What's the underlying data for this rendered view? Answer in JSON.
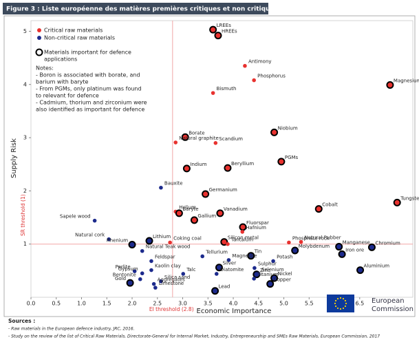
{
  "header": {
    "title": "Figure 3 : Liste européenne des matières premières critiques et non critiques"
  },
  "chart_data": {
    "type": "scatter",
    "xlabel": "Economic Importance",
    "ylabel": "Supply Risk",
    "xlim": [
      0,
      7.55
    ],
    "ylim": [
      0,
      5.2
    ],
    "xticks": [
      {
        "value": 0,
        "label": "0.0"
      },
      {
        "value": 0.5,
        "label": "0.5"
      },
      {
        "value": 1,
        "label": "1.0"
      },
      {
        "value": 1.5,
        "label": "1.5"
      },
      {
        "value": 2,
        "label": "2.0"
      },
      {
        "value": 2.5,
        "label": "2.5"
      },
      {
        "value": 3,
        "label": "3.0"
      },
      {
        "value": 3.5,
        "label": "3.5"
      },
      {
        "value": 4,
        "label": "4.0"
      },
      {
        "value": 4.5,
        "label": "4.5"
      },
      {
        "value": 5,
        "label": "5.0"
      },
      {
        "value": 5.5,
        "label": "5.5"
      },
      {
        "value": 6,
        "label": "6.0"
      },
      {
        "value": 6.5,
        "label": "6.5"
      }
    ],
    "yticks": [
      1,
      2,
      3,
      4,
      5
    ],
    "thresholds": {
      "x": 2.8,
      "x_label": "EI threshold (2.8)",
      "y": 1,
      "y_label": "SR threshold (1)",
      "color": "#f2a6a6"
    },
    "defence_legend": [
      "Materials important for defence",
      "applications"
    ],
    "notes": [
      "Notes:",
      "- Boron is associated with borate, and",
      "  barium with baryte",
      "- From PGMs, only platinum was found",
      "  to relevant for defence",
      "- Cadmium, thorium and zirconium were",
      "  also identified as important for defence"
    ],
    "series": [
      {
        "name": "Critical raw materials",
        "color": "#e8322f",
        "labels": [
          "LREEs",
          "HREEs",
          "Antimony",
          "Phosphorus",
          "Bismuth",
          "Magnesium",
          "Niobium",
          "Borate",
          "Natural graphite",
          "Scandium",
          "PGMs",
          "Indium",
          "Beryllium",
          "Germanium",
          "Cobalt",
          "Tungsten",
          "Helium",
          "Baryte",
          "Vanadium",
          "Gallium",
          "Fluorspar",
          "Hafnium",
          "Coking coal",
          "Silicon metal",
          "Tantalum",
          "Phosphate rock",
          "Natural Rubber"
        ],
        "x": [
          3.6,
          3.7,
          4.23,
          4.41,
          3.6,
          7.1,
          4.81,
          3.05,
          2.86,
          3.65,
          4.95,
          3.08,
          3.89,
          3.45,
          5.69,
          7.24,
          2.86,
          2.93,
          3.74,
          3.23,
          4.19,
          4.18,
          2.75,
          3.82,
          3.89,
          5.1,
          5.34
        ],
        "values": [
          5.03,
          4.92,
          4.35,
          4.08,
          3.84,
          3.99,
          3.1,
          3.01,
          2.91,
          2.9,
          2.55,
          2.42,
          2.43,
          1.94,
          1.66,
          1.78,
          1.61,
          1.58,
          1.58,
          1.45,
          1.32,
          1.23,
          1.03,
          1.04,
          1.0,
          1.03,
          1.04
        ],
        "defence": [
          true,
          true,
          false,
          false,
          false,
          true,
          true,
          true,
          false,
          false,
          true,
          true,
          true,
          true,
          true,
          true,
          false,
          true,
          true,
          true,
          true,
          false,
          false,
          true,
          false,
          false,
          false
        ]
      },
      {
        "name": "Non-critical raw materials",
        "color": "#1c2a8c",
        "labels": [
          "Bauxite",
          "Sapele wood",
          "Natural cork",
          "Rhenium",
          "Lithium",
          "Manganese",
          "Chromium",
          "Molybdenum",
          "Iron ore",
          "Natural Teak wood",
          "Tellurium",
          "Tin",
          "Magnesite",
          "Potash",
          "Feldspar",
          "Perlite",
          "Kaolin clay",
          "Gypsum",
          "Talc",
          "Silver",
          "Diatomite",
          "Zinc",
          "Sulphur",
          "Selenium",
          "Nickel",
          "Aluminium",
          "Bentonite",
          "Silica sand",
          "Aggregates",
          "Limestone",
          "Gold",
          "Titanium",
          "Copper",
          "Lead"
        ],
        "x": [
          2.57,
          1.26,
          1.54,
          2.0,
          2.34,
          6.09,
          6.74,
          5.22,
          6.15,
          2.2,
          3.39,
          4.35,
          3.91,
          4.79,
          2.38,
          2.05,
          2.38,
          2.2,
          3.01,
          3.72,
          3.67,
          4.46,
          4.42,
          4.49,
          4.81,
          6.51,
          2.16,
          2.57,
          2.43,
          2.46,
          1.96,
          4.41,
          4.73,
          3.64
        ],
        "values": [
          2.06,
          1.44,
          1.09,
          0.99,
          1.06,
          0.95,
          0.94,
          0.88,
          0.81,
          0.87,
          0.77,
          0.78,
          0.7,
          0.68,
          0.68,
          0.49,
          0.51,
          0.45,
          0.44,
          0.56,
          0.44,
          0.43,
          0.55,
          0.44,
          0.36,
          0.51,
          0.34,
          0.3,
          0.25,
          0.18,
          0.27,
          0.35,
          0.25,
          0.12
        ],
        "defence": [
          false,
          false,
          false,
          true,
          true,
          true,
          true,
          true,
          true,
          false,
          false,
          true,
          false,
          false,
          false,
          false,
          false,
          false,
          false,
          true,
          false,
          true,
          false,
          false,
          true,
          true,
          false,
          false,
          false,
          false,
          true,
          false,
          true,
          true
        ]
      }
    ]
  },
  "logo": [
    "European",
    "Commission"
  ],
  "sources": {
    "title": "Sources :",
    "lines": [
      "- Raw materials in the European defence industry, JRC, 2016.",
      "- Study on the review of the list of Critical Raw Materials, Directorate-General for Internal Market, Industry, Entrepreneurship and SMEs Raw Materials, European Commission, 2017"
    ]
  }
}
